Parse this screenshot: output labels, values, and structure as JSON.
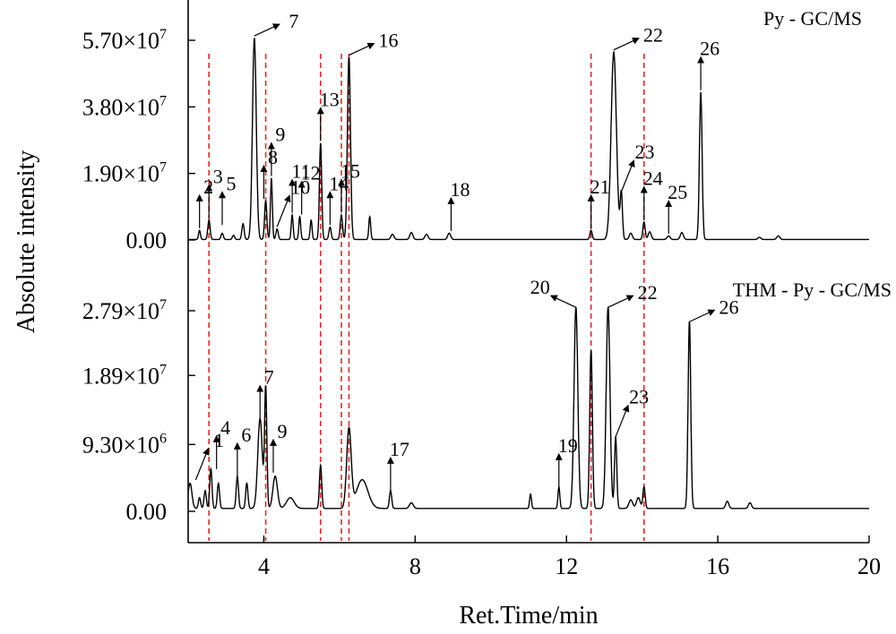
{
  "chart_data": {
    "type": "line",
    "xlabel": "Ret.Time/min",
    "ylabel": "Absolute intensity",
    "xlim": [
      2,
      20
    ],
    "x_ticks": [
      "4",
      "8",
      "12",
      "16",
      "20"
    ],
    "x_tick_values": [
      4,
      8,
      12,
      16,
      20
    ],
    "marker_lines_x": [
      2.55,
      4.05,
      5.5,
      6.05,
      6.25,
      12.65,
      14.05
    ],
    "panels": [
      {
        "label": "Py - GC/MS",
        "ylim": [
          0,
          57000000.0
        ],
        "y_ticks": [
          {
            "value": 57000000.0,
            "mantissa": "5.70×10",
            "exp": "7"
          },
          {
            "value": 38000000.0,
            "mantissa": "3.80×10",
            "exp": "7"
          },
          {
            "value": 19000000.0,
            "mantissa": "1.90×10",
            "exp": "7"
          },
          {
            "value": 0,
            "mantissa": "0.00",
            "exp": ""
          }
        ],
        "series": {
          "baseline": 150000.0,
          "peaks": [
            {
              "x": 2.3,
              "y": 2600000.0,
              "w": 0.025
            },
            {
              "x": 2.55,
              "y": 5500000.0,
              "w": 0.03
            },
            {
              "x": 2.9,
              "y": 1800000.0,
              "w": 0.03
            },
            {
              "x": 3.2,
              "y": 1200000.0,
              "w": 0.03
            },
            {
              "x": 3.45,
              "y": 4500000.0,
              "w": 0.03
            },
            {
              "x": 3.75,
              "y": 57500000.0,
              "w": 0.05
            },
            {
              "x": 4.05,
              "y": 11000000.0,
              "w": 0.03
            },
            {
              "x": 4.2,
              "y": 17500000.0,
              "w": 0.025
            },
            {
              "x": 4.35,
              "y": 3000000.0,
              "w": 0.03
            },
            {
              "x": 4.75,
              "y": 7000000.0,
              "w": 0.025
            },
            {
              "x": 4.95,
              "y": 6500000.0,
              "w": 0.025
            },
            {
              "x": 5.25,
              "y": 5500000.0,
              "w": 0.025
            },
            {
              "x": 5.5,
              "y": 27500000.0,
              "w": 0.03
            },
            {
              "x": 5.75,
              "y": 3500000.0,
              "w": 0.03
            },
            {
              "x": 6.05,
              "y": 7000000.0,
              "w": 0.03
            },
            {
              "x": 6.25,
              "y": 52000000.0,
              "w": 0.04
            },
            {
              "x": 6.8,
              "y": 6500000.0,
              "w": 0.025
            },
            {
              "x": 7.4,
              "y": 1500000.0,
              "w": 0.04
            },
            {
              "x": 7.9,
              "y": 2000000.0,
              "w": 0.04
            },
            {
              "x": 8.3,
              "y": 1500000.0,
              "w": 0.04
            },
            {
              "x": 8.9,
              "y": 1800000.0,
              "w": 0.04
            },
            {
              "x": 12.65,
              "y": 2600000.0,
              "w": 0.03
            },
            {
              "x": 13.25,
              "y": 53500000.0,
              "w": 0.07
            },
            {
              "x": 13.45,
              "y": 13000000.0,
              "w": 0.03
            },
            {
              "x": 13.7,
              "y": 1800000.0,
              "w": 0.04
            },
            {
              "x": 14.05,
              "y": 5000000.0,
              "w": 0.03
            },
            {
              "x": 14.2,
              "y": 2200000.0,
              "w": 0.04
            },
            {
              "x": 14.7,
              "y": 1000000.0,
              "w": 0.04
            },
            {
              "x": 15.05,
              "y": 2000000.0,
              "w": 0.04
            },
            {
              "x": 15.55,
              "y": 42000000.0,
              "w": 0.035
            },
            {
              "x": 17.1,
              "y": 600000.0,
              "w": 0.04
            },
            {
              "x": 17.6,
              "y": 1000000.0,
              "w": 0.04
            }
          ]
        },
        "annotations": [
          {
            "text": "2",
            "x": 2.3,
            "y": 2600000.0,
            "dir": "up"
          },
          {
            "text": "3",
            "x": 2.55,
            "y": 5500000.0,
            "dir": "up"
          },
          {
            "text": "5",
            "x": 2.9,
            "y": 3500000.0,
            "dir": "up"
          },
          {
            "text": "7",
            "x": 3.75,
            "y": 57500000.0,
            "dir": "right"
          },
          {
            "text": "8",
            "x": 4.0,
            "y": 11000000.0,
            "dir": "up"
          },
          {
            "text": "9",
            "x": 4.2,
            "y": 17500000.0,
            "dir": "up"
          },
          {
            "text": "10",
            "x": 4.35,
            "y": 3000000.0,
            "dir": "upright"
          },
          {
            "text": "11",
            "x": 4.75,
            "y": 7000000.0,
            "dir": "up"
          },
          {
            "text": "12",
            "x": 5.0,
            "y": 6500000.0,
            "dir": "up"
          },
          {
            "text": "13",
            "x": 5.5,
            "y": 27500000.0,
            "dir": "up"
          },
          {
            "text": "14",
            "x": 5.75,
            "y": 3500000.0,
            "dir": "up"
          },
          {
            "text": "15",
            "x": 6.05,
            "y": 7000000.0,
            "dir": "up"
          },
          {
            "text": "16",
            "x": 6.25,
            "y": 52000000.0,
            "dir": "right"
          },
          {
            "text": "18",
            "x": 8.95,
            "y": 1800000.0,
            "dir": "up"
          },
          {
            "text": "21",
            "x": 12.65,
            "y": 2600000.0,
            "dir": "up"
          },
          {
            "text": "22",
            "x": 13.25,
            "y": 53500000.0,
            "dir": "right"
          },
          {
            "text": "23",
            "x": 13.45,
            "y": 13000000.0,
            "dir": "upright"
          },
          {
            "text": "24",
            "x": 14.05,
            "y": 5000000.0,
            "dir": "up"
          },
          {
            "text": "25",
            "x": 14.7,
            "y": 1000000.0,
            "dir": "up"
          },
          {
            "text": "26",
            "x": 15.55,
            "y": 42000000.0,
            "dir": "up"
          }
        ]
      },
      {
        "label": "THM - Py - GC/MS",
        "ylim": [
          0,
          27900000.0
        ],
        "y_ticks": [
          {
            "value": 27900000.0,
            "mantissa": "2.79×10",
            "exp": "7"
          },
          {
            "value": 18900000.0,
            "mantissa": "1.89×10",
            "exp": "7"
          },
          {
            "value": 9300000.0,
            "mantissa": "9.30×10",
            "exp": "6"
          },
          {
            "value": 0,
            "mantissa": "0.00",
            "exp": ""
          }
        ],
        "series": {
          "baseline": 400000.0,
          "peaks": [
            {
              "x": 2.05,
              "y": 3500000.0,
              "w": 0.05
            },
            {
              "x": 2.3,
              "y": 1500000.0,
              "w": 0.03
            },
            {
              "x": 2.45,
              "y": 2500000.0,
              "w": 0.03
            },
            {
              "x": 2.6,
              "y": 5500000.0,
              "w": 0.03
            },
            {
              "x": 2.8,
              "y": 3500000.0,
              "w": 0.03
            },
            {
              "x": 3.3,
              "y": 4500000.0,
              "w": 0.03
            },
            {
              "x": 3.55,
              "y": 3500000.0,
              "w": 0.03
            },
            {
              "x": 3.9,
              "y": 12500000.0,
              "w": 0.06
            },
            {
              "x": 4.05,
              "y": 16500000.0,
              "w": 0.03
            },
            {
              "x": 4.3,
              "y": 4500000.0,
              "w": 0.06
            },
            {
              "x": 4.7,
              "y": 1500000.0,
              "w": 0.1
            },
            {
              "x": 5.5,
              "y": 6000000.0,
              "w": 0.03
            },
            {
              "x": 6.25,
              "y": 11000000.0,
              "w": 0.06
            },
            {
              "x": 6.6,
              "y": 4000000.0,
              "w": 0.15
            },
            {
              "x": 7.35,
              "y": 2500000.0,
              "w": 0.03
            },
            {
              "x": 7.9,
              "y": 800000.0,
              "w": 0.05
            },
            {
              "x": 11.05,
              "y": 2000000.0,
              "w": 0.025
            },
            {
              "x": 11.8,
              "y": 3000000.0,
              "w": 0.025
            },
            {
              "x": 12.25,
              "y": 28000000.0,
              "w": 0.05
            },
            {
              "x": 12.65,
              "y": 22000000.0,
              "w": 0.035
            },
            {
              "x": 13.1,
              "y": 28000000.0,
              "w": 0.05
            },
            {
              "x": 13.3,
              "y": 10000000.0,
              "w": 0.03
            },
            {
              "x": 13.7,
              "y": 1200000.0,
              "w": 0.05
            },
            {
              "x": 13.9,
              "y": 1500000.0,
              "w": 0.05
            },
            {
              "x": 14.05,
              "y": 3000000.0,
              "w": 0.03
            },
            {
              "x": 15.25,
              "y": 26000000.0,
              "w": 0.035
            },
            {
              "x": 16.25,
              "y": 1000000.0,
              "w": 0.04
            },
            {
              "x": 16.85,
              "y": 800000.0,
              "w": 0.04
            }
          ]
        },
        "annotations": [
          {
            "text": "1",
            "x": 2.2,
            "y": 4000000.0,
            "dir": "upright"
          },
          {
            "text": "4",
            "x": 2.75,
            "y": 5500000.0,
            "dir": "up"
          },
          {
            "text": "6",
            "x": 3.3,
            "y": 4500000.0,
            "dir": "up"
          },
          {
            "text": "7",
            "x": 3.9,
            "y": 12500000.0,
            "dir": "up"
          },
          {
            "text": "9",
            "x": 4.25,
            "y": 5000000.0,
            "dir": "up"
          },
          {
            "text": "17",
            "x": 7.35,
            "y": 2500000.0,
            "dir": "up"
          },
          {
            "text": "19",
            "x": 11.8,
            "y": 3000000.0,
            "dir": "up"
          },
          {
            "text": "20",
            "x": 12.25,
            "y": 28000000.0,
            "dir": "left"
          },
          {
            "text": "22",
            "x": 13.1,
            "y": 28000000.0,
            "dir": "right"
          },
          {
            "text": "23",
            "x": 13.3,
            "y": 10000000.0,
            "dir": "upright"
          },
          {
            "text": "26",
            "x": 15.25,
            "y": 26000000.0,
            "dir": "right"
          }
        ]
      }
    ]
  }
}
